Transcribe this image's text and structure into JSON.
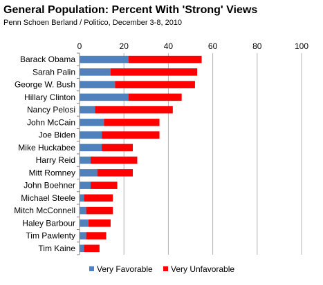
{
  "chart_data": {
    "type": "bar",
    "orientation": "horizontal",
    "stacked": true,
    "title": "General Population: Percent With 'Strong' Views",
    "subtitle": "Penn Schoen Berland / Politico, December 3-8, 2010",
    "xlim": [
      0,
      100
    ],
    "xticks": [
      "0",
      "20",
      "40",
      "60",
      "80",
      "100"
    ],
    "grid": true,
    "legend_position": "bottom",
    "categories": [
      "Barack Obama",
      "Sarah Palin",
      "George W. Bush",
      "Hillary Clinton",
      "Nancy Pelosi",
      "John McCain",
      "Joe Biden",
      "Mike Huckabee",
      "Harry Reid",
      "Mitt Romney",
      "John Boehner",
      "Michael Steele",
      "Mitch McConnell",
      "Haley Barbour",
      "Tim Pawlenty",
      "Tim Kaine"
    ],
    "series": [
      {
        "name": "Very Favorable",
        "color": "#4f81bd",
        "values": [
          22,
          14,
          16,
          22,
          7,
          11,
          10,
          10,
          5,
          8,
          5,
          2,
          3,
          4,
          3,
          2
        ]
      },
      {
        "name": "Very Unfavorable",
        "color": "#ff0000",
        "values": [
          33,
          39,
          36,
          24,
          35,
          25,
          26,
          14,
          21,
          16,
          12,
          13,
          12,
          10,
          9,
          7
        ]
      }
    ]
  }
}
